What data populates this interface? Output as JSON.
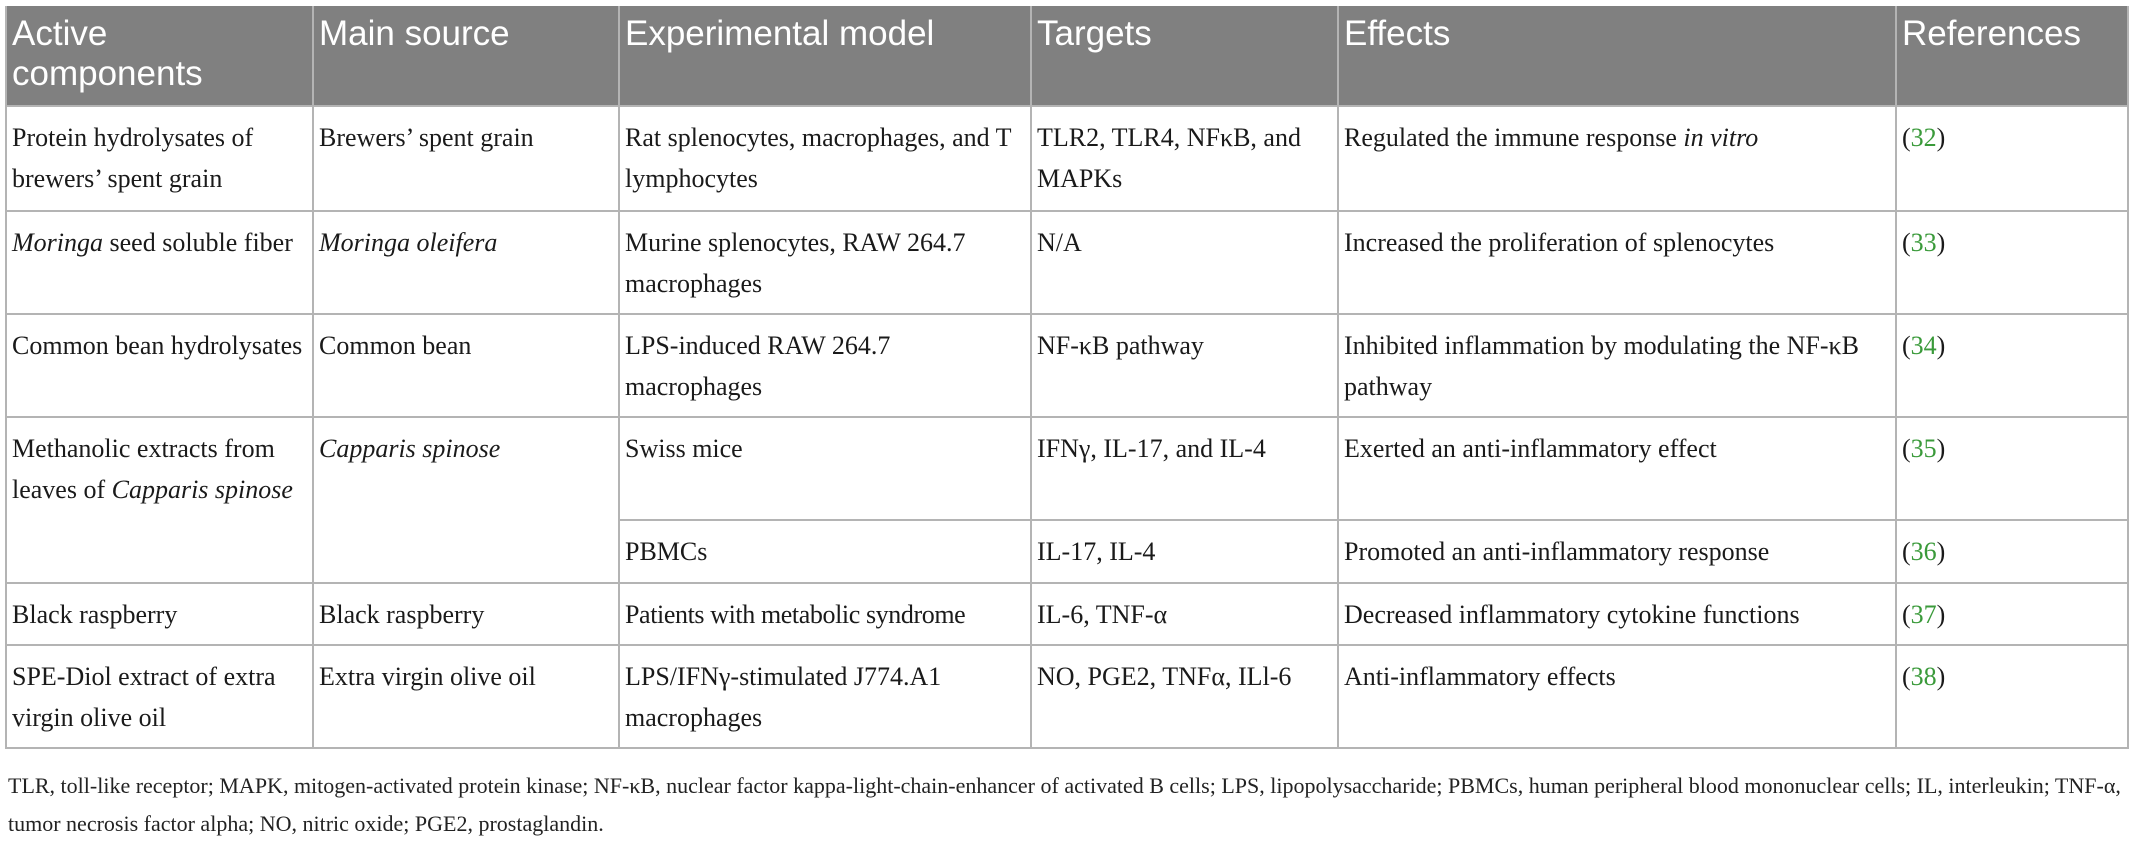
{
  "headers": [
    "Active components",
    "Main source",
    "Experimental model",
    "Targets",
    "Effects",
    "References"
  ],
  "rows": [
    {
      "component": {
        "pre": "Protein hydrolysates of brewers’ spent grain",
        "ital": "",
        "post": ""
      },
      "source": {
        "text": "Brewers’ spent grain",
        "italic": false
      },
      "model": "Rat splenocytes, macrophages, and T lymphocytes",
      "targets": "TLR2, TLR4, NFκB, and MAPKs",
      "effects": {
        "pre": "Regulated the immune response ",
        "ital": "in vitro",
        "post": ""
      },
      "ref": "32"
    },
    {
      "component": {
        "pre": "",
        "ital": "Moringa",
        "post": " seed soluble fiber"
      },
      "source": {
        "text": "Moringa oleifera",
        "italic": true
      },
      "model": "Murine splenocytes, RAW 264.7 macrophages",
      "targets": "N/A",
      "effects": {
        "pre": "Increased the proliferation of splenocytes",
        "ital": "",
        "post": ""
      },
      "ref": "33"
    },
    {
      "component": {
        "pre": "Common bean hydrolysates",
        "ital": "",
        "post": ""
      },
      "source": {
        "text": "Common bean",
        "italic": false
      },
      "model": "LPS-induced RAW 264.7 macrophages",
      "targets": "NF-κB pathway",
      "effects": {
        "pre": "Inhibited inflammation by modulating the NF-κB pathway",
        "ital": "",
        "post": ""
      },
      "ref": "34"
    },
    {
      "component": {
        "pre": "Methanolic extracts from leaves of ",
        "ital": "Capparis spinose",
        "post": ""
      },
      "source": {
        "text": "Capparis spinose",
        "italic": true
      },
      "model": "Swiss mice",
      "targets": "IFNγ, IL-17, and IL-4",
      "effects": {
        "pre": "Exerted an anti-inflammatory effect",
        "ital": "",
        "post": ""
      },
      "ref": "35"
    },
    {
      "model": "PBMCs",
      "targets": "IL-17, IL-4",
      "effects": {
        "pre": "Promoted an anti-inflammatory response",
        "ital": "",
        "post": ""
      },
      "ref": "36"
    },
    {
      "component": {
        "pre": "Black raspberry",
        "ital": "",
        "post": ""
      },
      "source": {
        "text": "Black raspberry",
        "italic": false
      },
      "model": "Patients with metabolic syndrome",
      "targets": "IL-6, TNF-α",
      "effects": {
        "pre": "Decreased inflammatory cytokine functions",
        "ital": "",
        "post": ""
      },
      "ref": "37"
    },
    {
      "component": {
        "pre": "SPE-Diol extract of extra virgin olive oil",
        "ital": "",
        "post": ""
      },
      "source": {
        "text": "Extra virgin olive oil",
        "italic": false
      },
      "model": "LPS/IFNγ-stimulated J774.A1 macrophages",
      "targets": "NO, PGE2, TNFα, ILl-6",
      "effects": {
        "pre": "Anti-inflammatory effects",
        "ital": "",
        "post": ""
      },
      "ref": "38"
    }
  ],
  "ref_open": "(",
  "ref_close": ")",
  "footnote": "TLR, toll-like receptor; MAPK, mitogen-activated protein kinase; NF-κB, nuclear factor kappa-light-chain-enhancer of activated B cells; LPS, lipopolysaccharide; PBMCs, human peripheral blood mononuclear cells; IL, interleukin; TNF-α, tumor necrosis factor alpha; NO, nitric oxide; PGE2, prostaglandin.",
  "colors": {
    "header_bg": "#808080",
    "header_text": "#ffffff",
    "border": "#b4b4b4",
    "ref_link": "#3a9a3a"
  }
}
